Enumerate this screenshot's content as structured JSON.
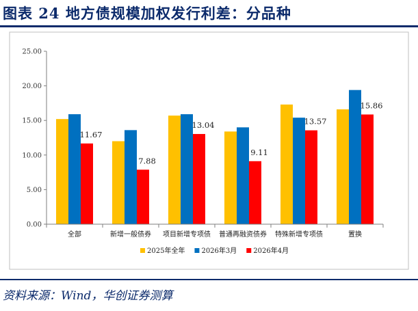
{
  "header": {
    "title": "图表 24   地方债规模加权发行利差：分品种"
  },
  "footer": {
    "source": "资料来源：Wind，华创证券测算"
  },
  "colors": {
    "title": "#0b2a6b",
    "axis": "#7f7f7f"
  },
  "chart_data": {
    "type": "bar",
    "title": "",
    "xlabel": "",
    "ylabel": "",
    "ylim": [
      0,
      25
    ],
    "yticks": [
      "0.00",
      "5.00",
      "10.00",
      "15.00",
      "20.00",
      "25.00"
    ],
    "grid": false,
    "legend_position": "bottom",
    "categories": [
      "全部",
      "新增一般债券",
      "项目新增专项债",
      "普通再融资债券",
      "特殊新增专项债",
      "置换"
    ],
    "series": [
      {
        "name": "2025年全年",
        "color": "#FFC000",
        "values": [
          15.2,
          12.0,
          15.7,
          13.4,
          17.3,
          16.6
        ],
        "labels": []
      },
      {
        "name": "2026年3月",
        "color": "#0070C0",
        "values": [
          15.9,
          13.6,
          15.9,
          14.0,
          15.4,
          19.4
        ],
        "labels": []
      },
      {
        "name": "2026年4月",
        "color": "#FF0000",
        "values": [
          11.67,
          7.88,
          13.04,
          9.11,
          13.57,
          15.86
        ],
        "labels": [
          "11.67",
          "7.88",
          "13.04",
          "9.11",
          "13.57",
          "15.86"
        ]
      }
    ]
  }
}
